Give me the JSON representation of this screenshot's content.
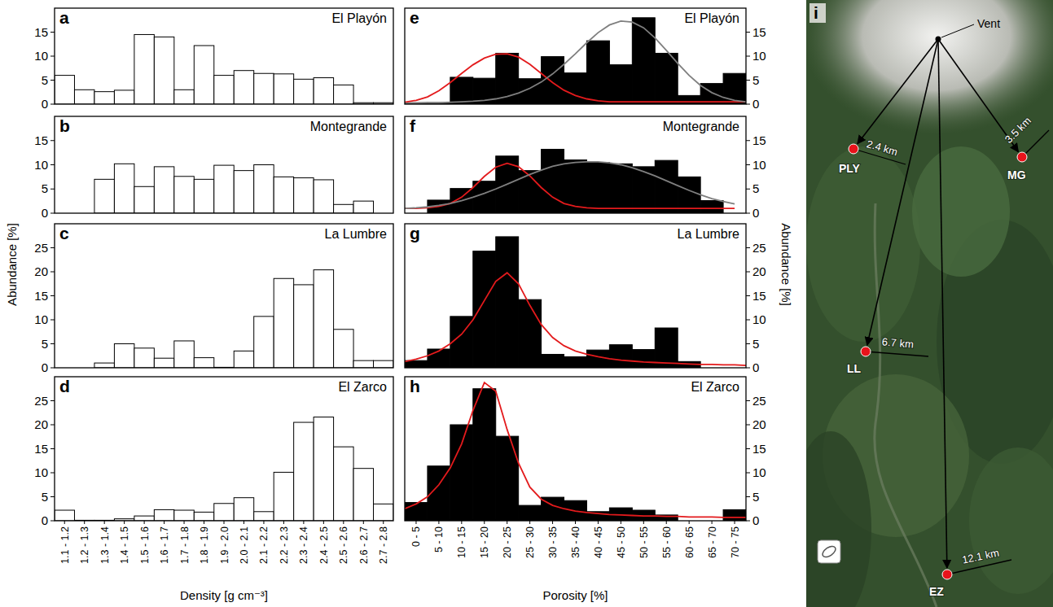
{
  "chart_data": [
    {
      "type": "histogram",
      "panel_label": "a",
      "title": "El Playón",
      "ylabel": "Abundance [%]",
      "bins": [
        1.1,
        1.2,
        1.3,
        1.4,
        1.5,
        1.6,
        1.7,
        1.8,
        1.9,
        2.0,
        2.1,
        2.2,
        2.3,
        2.4,
        2.5,
        2.6,
        2.7,
        2.8
      ],
      "values": [
        6,
        3,
        2.6,
        2.9,
        14.5,
        14,
        3,
        12.2,
        6,
        7,
        6.4,
        6.3,
        5.2,
        5.5,
        4,
        0.3,
        0.3
      ],
      "color": "#ffffff",
      "xlim": [
        1.1,
        2.8
      ],
      "ylim": [
        0,
        20
      ],
      "yticks": [
        0,
        5,
        10,
        15
      ],
      "tick_labels": "y"
    },
    {
      "type": "histogram",
      "panel_label": "b",
      "title": "Montegrande",
      "bins": [
        1.1,
        1.2,
        1.3,
        1.4,
        1.5,
        1.6,
        1.7,
        1.8,
        1.9,
        2.0,
        2.1,
        2.2,
        2.3,
        2.4,
        2.5,
        2.6,
        2.7,
        2.8
      ],
      "values": [
        0,
        0,
        7,
        10.2,
        5.5,
        9.6,
        7.6,
        7,
        9.9,
        8.8,
        10,
        7.5,
        7.3,
        6.9,
        1.8,
        2.5,
        0
      ],
      "color": "#ffffff",
      "xlim": [
        1.1,
        2.8
      ],
      "ylim": [
        0,
        20
      ],
      "yticks": [
        0,
        5,
        10,
        15
      ],
      "tick_labels": "y"
    },
    {
      "type": "histogram",
      "panel_label": "c",
      "title": "La Lumbre",
      "bins": [
        1.1,
        1.2,
        1.3,
        1.4,
        1.5,
        1.6,
        1.7,
        1.8,
        1.9,
        2.0,
        2.1,
        2.2,
        2.3,
        2.4,
        2.5,
        2.6,
        2.7,
        2.8
      ],
      "values": [
        0,
        0,
        1,
        5,
        4.1,
        2,
        5.6,
        2.1,
        0.1,
        3.5,
        10.7,
        18.6,
        17.3,
        20.4,
        8,
        1.5,
        1.5
      ],
      "color": "#ffffff",
      "xlim": [
        1.1,
        2.8
      ],
      "ylim": [
        0,
        30
      ],
      "yticks": [
        0,
        5,
        10,
        15,
        20,
        25
      ],
      "tick_labels": "y"
    },
    {
      "type": "histogram",
      "panel_label": "d",
      "title": "El Zarco",
      "xlabel": "Density [g cm⁻³]",
      "bins": [
        1.1,
        1.2,
        1.3,
        1.4,
        1.5,
        1.6,
        1.7,
        1.8,
        1.9,
        2.0,
        2.1,
        2.2,
        2.3,
        2.4,
        2.5,
        2.6,
        2.7,
        2.8
      ],
      "values": [
        2.2,
        0.1,
        0.1,
        0.4,
        1,
        2.3,
        2.2,
        1.8,
        3.6,
        4.8,
        1.9,
        10.1,
        20.5,
        21.6,
        15.4,
        10.9,
        3.5
      ],
      "color": "#ffffff",
      "xlim": [
        1.1,
        2.8
      ],
      "ylim": [
        0,
        30
      ],
      "yticks": [
        0,
        5,
        10,
        15,
        20,
        25
      ],
      "xticks": [
        {
          "value": 1.15,
          "label": "1.1 - 1.2"
        },
        {
          "value": 1.25,
          "label": "1.2 - 1.3"
        },
        {
          "value": 1.35,
          "label": "1.3 - 1.4"
        },
        {
          "value": 1.45,
          "label": "1.4 - 1.5"
        },
        {
          "value": 1.55,
          "label": "1.5 - 1.6"
        },
        {
          "value": 1.65,
          "label": "1.6 - 1.7"
        },
        {
          "value": 1.75,
          "label": "1.7 - 1.8"
        },
        {
          "value": 1.85,
          "label": "1.8 - 1.9"
        },
        {
          "value": 1.95,
          "label": "1.9 - 2.0"
        },
        {
          "value": 2.05,
          "label": "2.0 - 2.1"
        },
        {
          "value": 2.15,
          "label": "2.1 - 2.2"
        },
        {
          "value": 2.25,
          "label": "2.2 - 2.3"
        },
        {
          "value": 2.35,
          "label": "2.3 - 2.4"
        },
        {
          "value": 2.45,
          "label": "2.4 - 2.5"
        },
        {
          "value": 2.55,
          "label": "2.5 - 2.6"
        },
        {
          "value": 2.65,
          "label": "2.6 - 2.7"
        },
        {
          "value": 2.75,
          "label": "2.7 - 2.8"
        }
      ]
    },
    {
      "type": "histogram",
      "panel_label": "e",
      "title": "El Playón",
      "ylabel": "Abundance [%]",
      "bins": [
        0,
        5,
        10,
        15,
        20,
        25,
        30,
        35,
        40,
        45,
        50,
        55,
        60,
        65,
        70,
        75
      ],
      "xlim": [
        0,
        75
      ],
      "y2lim": [
        0,
        20
      ],
      "y2ticks": [
        0,
        5,
        10,
        15
      ],
      "tick_labels": "y",
      "series": [
        {
          "type": "bar",
          "color": "#000000",
          "axis": "y2",
          "values": [
            0.3,
            0.3,
            5.6,
            5.4,
            10.6,
            5.3,
            9.9,
            6.5,
            13.2,
            8.2,
            18,
            10.6,
            1.8,
            4.3,
            6.4
          ]
        },
        {
          "type": "line",
          "color": "#e31a1c",
          "axis": "y2",
          "x": [
            0,
            2.5,
            5,
            7.5,
            10,
            12.5,
            15,
            17.5,
            20,
            22.5,
            25,
            27.5,
            30,
            32.5,
            35,
            37.5,
            40,
            42.5,
            45,
            47.5,
            50,
            52.5,
            55,
            57.5,
            60,
            62.5,
            65,
            67.5,
            70,
            72.5,
            75
          ],
          "values": [
            0.4,
            0.8,
            1.5,
            2.8,
            4.5,
            6.4,
            8.2,
            9.6,
            10.4,
            10.5,
            9.8,
            8.3,
            6.4,
            4.5,
            2.9,
            1.8,
            1.1,
            0.7,
            0.5,
            0.5,
            0.5,
            0.5,
            0.5,
            0.5,
            0.5,
            0.5,
            0.5,
            0.5,
            0.5,
            0.5,
            0.5
          ]
        },
        {
          "type": "line",
          "color": "#7f7f7f",
          "axis": "y2",
          "x": [
            0,
            2.5,
            5,
            7.5,
            10,
            12.5,
            15,
            17.5,
            20,
            22.5,
            25,
            27.5,
            30,
            32.5,
            35,
            37.5,
            40,
            42.5,
            45,
            47.5,
            50,
            52.5,
            55,
            57.5,
            60,
            62.5,
            65,
            67.5,
            70,
            72.5,
            75
          ],
          "values": [
            0.2,
            0.2,
            0.3,
            0.3,
            0.4,
            0.5,
            0.6,
            0.8,
            1.1,
            1.6,
            2.3,
            3.3,
            4.6,
            6.3,
            8.3,
            10.5,
            12.8,
            14.9,
            16.5,
            17.3,
            17.1,
            15.9,
            13.8,
            11.2,
            8.5,
            6.0,
            3.9,
            2.4,
            1.4,
            0.8,
            0.5
          ]
        }
      ]
    },
    {
      "type": "histogram",
      "panel_label": "f",
      "title": "Montegrande",
      "bins": [
        0,
        5,
        10,
        15,
        20,
        25,
        30,
        35,
        40,
        45,
        50,
        55,
        60,
        65,
        70,
        75
      ],
      "xlim": [
        0,
        75
      ],
      "y2lim": [
        0,
        20
      ],
      "y2ticks": [
        0,
        5,
        10,
        15
      ],
      "tick_labels": "y",
      "series": [
        {
          "type": "bar",
          "color": "#000000",
          "axis": "y2",
          "values": [
            0,
            2.7,
            5.1,
            6.6,
            11.8,
            8.8,
            13.2,
            11,
            10.5,
            10.2,
            9.6,
            10.9,
            7.5,
            2.6,
            0
          ]
        },
        {
          "type": "line",
          "color": "#e31a1c",
          "axis": "y2",
          "x": [
            0,
            2.5,
            5,
            7.5,
            10,
            12.5,
            15,
            17.5,
            20,
            22.5,
            25,
            27.5,
            30,
            32.5,
            35,
            37.5,
            40,
            42.5,
            45,
            47.5,
            50,
            52.5,
            55,
            57.5,
            60,
            62.5,
            65,
            67.5,
            70,
            72.5,
            75
          ],
          "values": [
            1,
            1,
            1.1,
            1.4,
            2,
            3.3,
            5.3,
            7.6,
            9.5,
            10.3,
            9.6,
            7.7,
            5.3,
            3.3,
            2,
            1.4,
            1.1,
            1,
            1,
            1,
            1,
            1,
            1,
            1,
            1,
            1,
            1,
            1,
            1,
            1,
            null
          ]
        },
        {
          "type": "line",
          "color": "#7f7f7f",
          "axis": "y2",
          "x": [
            0,
            2.5,
            5,
            7.5,
            10,
            12.5,
            15,
            17.5,
            20,
            22.5,
            25,
            27.5,
            30,
            32.5,
            35,
            37.5,
            40,
            42.5,
            45,
            47.5,
            50,
            52.5,
            55,
            57.5,
            60,
            62.5,
            65,
            67.5,
            70,
            72.5,
            75
          ],
          "values": [
            1.0,
            1.1,
            1.3,
            1.6,
            2.0,
            2.6,
            3.3,
            4.1,
            5.0,
            6.0,
            7.0,
            8.0,
            8.9,
            9.7,
            10.2,
            10.5,
            10.6,
            10.6,
            10.4,
            10.0,
            9.4,
            8.6,
            7.7,
            6.7,
            5.7,
            4.7,
            3.8,
            3.0,
            2.4,
            1.9,
            null
          ]
        }
      ]
    },
    {
      "type": "histogram",
      "panel_label": "g",
      "title": "La Lumbre",
      "bins": [
        0,
        5,
        10,
        15,
        20,
        25,
        30,
        35,
        40,
        45,
        50,
        55,
        60,
        65,
        70,
        75
      ],
      "xlim": [
        0,
        75
      ],
      "y2lim": [
        0,
        30
      ],
      "y2ticks": [
        0,
        5,
        10,
        15,
        20,
        25
      ],
      "tick_labels": "y",
      "series": [
        {
          "type": "bar",
          "color": "#000000",
          "axis": "y2",
          "values": [
            1.5,
            3.9,
            10.7,
            24.3,
            27.3,
            14.2,
            2.8,
            2.3,
            3.7,
            4.8,
            3.8,
            8.3,
            1.3,
            0,
            0
          ]
        },
        {
          "type": "line",
          "color": "#e31a1c",
          "axis": "y2",
          "x": [
            0,
            2.5,
            5,
            7.5,
            10,
            12.5,
            15,
            17.5,
            20,
            22.5,
            25,
            27.5,
            30,
            32.5,
            35,
            37.5,
            40,
            42.5,
            45,
            47.5,
            50,
            52.5,
            55,
            57.5,
            60,
            62.5,
            65,
            67.5,
            70,
            72.5,
            75
          ],
          "values": [
            1.3,
            1.8,
            2.5,
            3.5,
            5,
            7,
            10,
            14,
            18,
            19.8,
            17.5,
            13,
            9,
            6.3,
            4.6,
            3.5,
            2.8,
            2.3,
            1.9,
            1.6,
            1.4,
            1.2,
            1.1,
            1,
            0.9,
            0.8,
            0.7,
            0.7,
            0.6,
            0.6,
            0.5
          ]
        }
      ]
    },
    {
      "type": "histogram",
      "panel_label": "h",
      "title": "El Zarco",
      "xlabel": "Porosity [%]",
      "bins": [
        0,
        5,
        10,
        15,
        20,
        25,
        30,
        35,
        40,
        45,
        50,
        55,
        60,
        65,
        70,
        75
      ],
      "xlim": [
        0,
        75
      ],
      "y2lim": [
        0,
        30
      ],
      "y2ticks": [
        0,
        5,
        10,
        15,
        20,
        25
      ],
      "xticks": [
        {
          "value": 2.5,
          "label": "0 - 5"
        },
        {
          "value": 7.5,
          "label": "5 - 10"
        },
        {
          "value": 12.5,
          "label": "10 - 15"
        },
        {
          "value": 17.5,
          "label": "15 - 20"
        },
        {
          "value": 22.5,
          "label": "20 - 25"
        },
        {
          "value": 27.5,
          "label": "25 - 30"
        },
        {
          "value": 32.5,
          "label": "30 - 35"
        },
        {
          "value": 37.5,
          "label": "35 - 40"
        },
        {
          "value": 42.5,
          "label": "40 - 45"
        },
        {
          "value": 47.5,
          "label": "45 - 50"
        },
        {
          "value": 52.5,
          "label": "50 - 55"
        },
        {
          "value": 57.5,
          "label": "55 - 60"
        },
        {
          "value": 62.5,
          "label": "60 - 65"
        },
        {
          "value": 67.5,
          "label": "65 - 70"
        },
        {
          "value": 72.5,
          "label": "70 - 75"
        }
      ],
      "series": [
        {
          "type": "bar",
          "color": "#000000",
          "axis": "y2",
          "values": [
            3.8,
            11.4,
            20,
            27.5,
            17.6,
            3.2,
            4.9,
            4.2,
            1.9,
            2.7,
            2.2,
            1.2,
            0,
            0,
            2.3
          ]
        },
        {
          "type": "line",
          "color": "#e31a1c",
          "axis": "y2",
          "x": [
            0,
            2.5,
            5,
            7.5,
            10,
            12.5,
            15,
            17.5,
            20,
            22.5,
            25,
            27.5,
            30,
            32.5,
            35,
            37.5,
            40,
            42.5,
            45,
            47.5,
            50,
            52.5,
            55,
            57.5,
            60,
            62.5,
            65,
            67.5,
            70,
            72.5,
            75
          ],
          "values": [
            2.5,
            3.5,
            5,
            7.5,
            11,
            16,
            23,
            28.8,
            27,
            19,
            12,
            7,
            4.5,
            3.2,
            2.5,
            2,
            1.7,
            1.5,
            1.3,
            1.2,
            1.1,
            1,
            1,
            0.9,
            0.9,
            0.8,
            0.8,
            0.8,
            0.7,
            0.7,
            0.7
          ]
        }
      ]
    }
  ],
  "map": {
    "panel_label": "i",
    "vent_label": "Vent",
    "sites": [
      {
        "label": "PLY",
        "distance": "2.4 km"
      },
      {
        "label": "MG",
        "distance": "3.5 km"
      },
      {
        "label": "LL",
        "distance": "6.7 km"
      },
      {
        "label": "EZ",
        "distance": "12.1 km"
      }
    ]
  }
}
